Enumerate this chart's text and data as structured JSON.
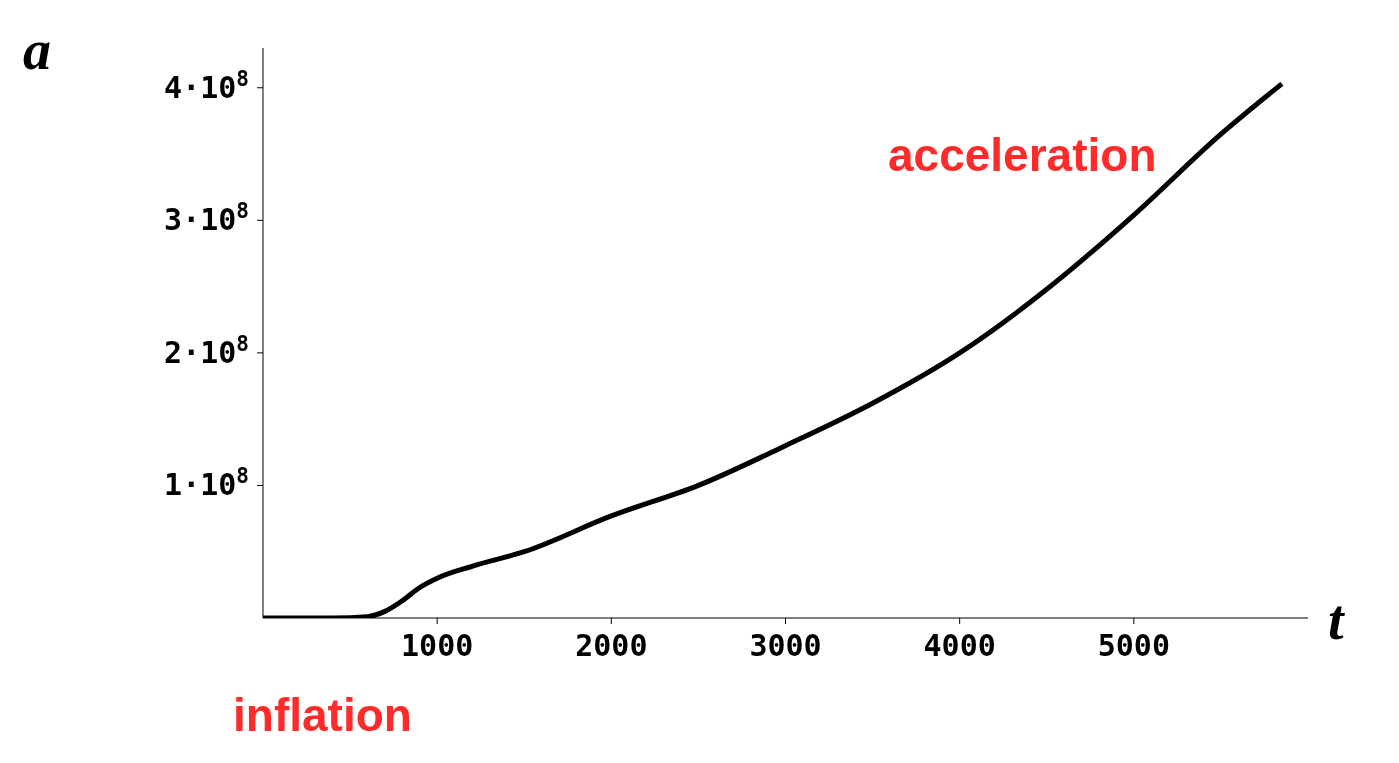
{
  "chart_data": {
    "type": "line",
    "xlabel": "t",
    "ylabel": "a",
    "x": [
      0,
      200,
      400,
      600,
      700,
      800,
      900,
      1000,
      1200,
      1500,
      2000,
      2500,
      3000,
      3500,
      4000,
      4500,
      5000,
      5500,
      5850
    ],
    "series": [
      {
        "color": "#000000",
        "values": [
          0,
          0,
          0,
          1000000,
          5000000,
          13000000,
          23000000,
          30000000,
          39000000,
          50000000,
          77000000,
          100000000,
          130000000,
          162000000,
          200000000,
          248000000,
          304000000,
          365000000,
          403000000
        ]
      }
    ],
    "xlim": [
      0,
      6000
    ],
    "xticks": [
      1000,
      2000,
      3000,
      4000,
      5000
    ],
    "ylim": [
      0,
      430000000
    ],
    "yticks": [
      {
        "value": 100000000,
        "label": "1·10$^{8}$"
      },
      {
        "value": 200000000,
        "label": "2·10$^{8}$"
      },
      {
        "value": 300000000,
        "label": "3·10$^{8}$"
      },
      {
        "value": 400000000,
        "label": "4·10$^{8}$"
      }
    ],
    "annotations": [
      "acceleration",
      "inflation"
    ],
    "grid": false,
    "legend": false,
    "marker": "none",
    "line_style": "solid"
  }
}
